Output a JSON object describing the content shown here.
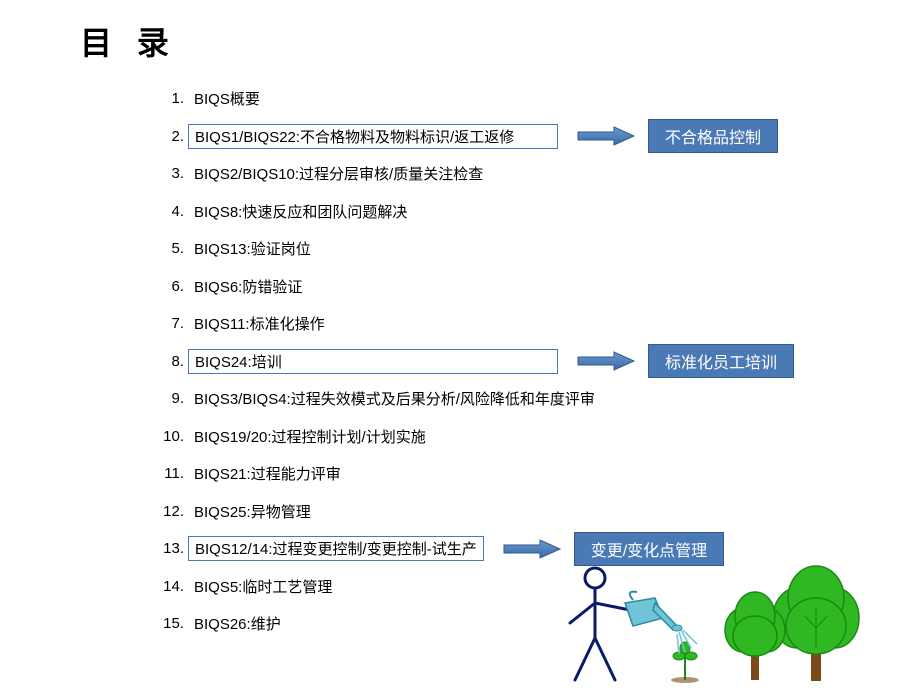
{
  "title": "目 录",
  "items": [
    {
      "num": "1.",
      "text": "BIQS概要",
      "boxed": false
    },
    {
      "num": "2.",
      "text": "BIQS1/BIQS22:不合格物料及物料标识/返工返修",
      "boxed": true,
      "label": "不合格品控制"
    },
    {
      "num": "3.",
      "text": "BIQS2/BIQS10:过程分层审核/质量关注检查",
      "boxed": false
    },
    {
      "num": "4.",
      "text": "BIQS8:快速反应和团队问题解决",
      "boxed": false
    },
    {
      "num": "5.",
      "text": "BIQS13:验证岗位",
      "boxed": false
    },
    {
      "num": "6.",
      "text": "BIQS6:防错验证",
      "boxed": false
    },
    {
      "num": "7.",
      "text": "BIQS11:标准化操作",
      "boxed": false
    },
    {
      "num": "8.",
      "text": "BIQS24:培训",
      "boxed": true,
      "label": "标准化员工培训"
    },
    {
      "num": "9.",
      "text": "BIQS3/BIQS4:过程失效模式及后果分析/风险降低和年度评审",
      "boxed": false
    },
    {
      "num": "10.",
      "text": "BIQS19/20:过程控制计划/计划实施",
      "boxed": false
    },
    {
      "num": "11.",
      "text": "BIQS21:过程能力评审",
      "boxed": false
    },
    {
      "num": "12.",
      "text": "BIQS25:异物管理",
      "boxed": false
    },
    {
      "num": "13.",
      "text": "BIQS12/14:过程变更控制/变更控制-试生产",
      "boxed": true,
      "boxNarrow": true,
      "label": "变更/变化点管理"
    },
    {
      "num": "14.",
      "text": " BIQS5:临时工艺管理",
      "boxed": false
    },
    {
      "num": "15.",
      "text": " BIQS26:维护",
      "boxed": false
    }
  ],
  "colors": {
    "box_border": "#4a7ab5",
    "label_bg": "#4a7ab5",
    "label_text": "#ffffff",
    "arrow_fill": "#4a7ab5",
    "arrow_stroke": "#355a8a",
    "tree_leaf": "#2fb821",
    "tree_trunk": "#7a4a1a",
    "stick_figure": "#0a1a6a",
    "water": "#6fc5d5"
  }
}
